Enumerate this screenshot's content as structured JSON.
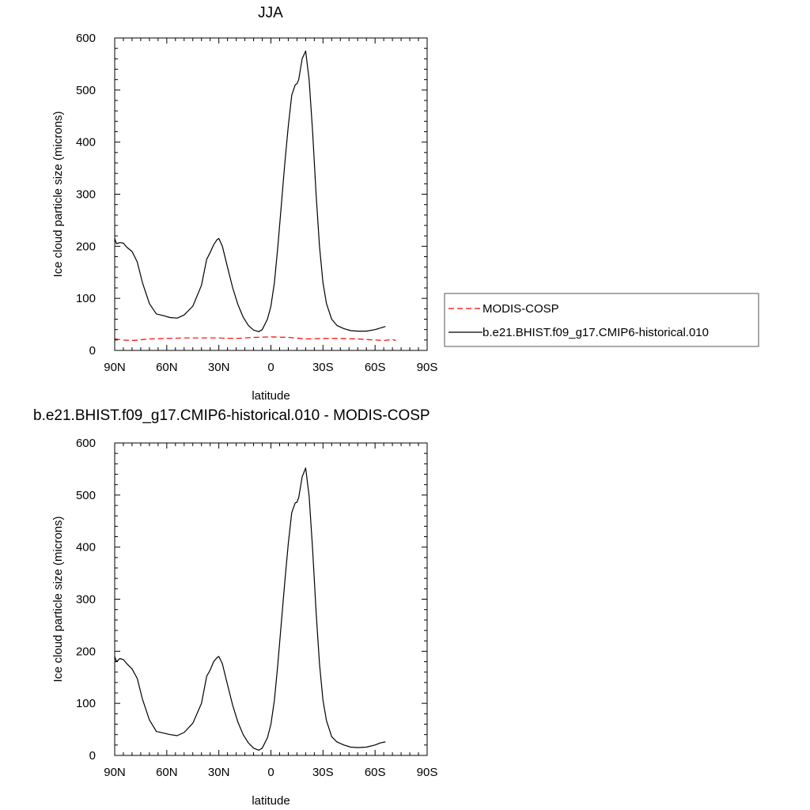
{
  "chart_data": [
    {
      "type": "line",
      "title": "JJA",
      "xlabel": "latitude",
      "ylabel": "Ice cloud particle size (microns)",
      "xlim": [
        90,
        -90
      ],
      "ylim": [
        0,
        600
      ],
      "xticks": [
        90,
        60,
        30,
        0,
        -30,
        -60,
        -90
      ],
      "xtick_labels": [
        "90N",
        "60N",
        "30N",
        "0",
        "30S",
        "60S",
        "90S"
      ],
      "yticks": [
        0,
        100,
        200,
        300,
        400,
        500,
        600
      ],
      "ytick_labels": [
        "0",
        "100",
        "200",
        "300",
        "400",
        "500",
        "600"
      ],
      "grid": false,
      "legend_position": "right",
      "series": [
        {
          "name": "MODIS-COSP",
          "color": "#ff0000",
          "dash": "dashed",
          "x": [
            90,
            85,
            80,
            70,
            60,
            50,
            40,
            30,
            20,
            10,
            0,
            -10,
            -20,
            -30,
            -40,
            -50,
            -55,
            -60,
            -65,
            -70,
            -72
          ],
          "y": [
            22,
            20,
            19,
            22,
            23,
            24,
            24,
            24,
            23,
            25,
            26,
            25,
            22,
            23,
            23,
            22,
            21,
            20,
            19,
            21,
            19
          ]
        },
        {
          "name": "b.e21.BHIST.f09_g17.CMIP6-historical.010",
          "color": "#000000",
          "dash": "solid",
          "x": [
            90,
            89,
            87,
            85,
            83,
            80,
            77,
            74,
            70,
            66,
            62,
            58,
            54,
            50,
            45,
            40,
            37,
            35,
            33,
            31,
            30,
            28,
            25,
            22,
            19,
            16,
            13,
            10,
            7,
            5,
            2,
            0,
            -2,
            -4,
            -6,
            -8,
            -10,
            -12,
            -14,
            -15,
            -16,
            -18,
            -20,
            -22,
            -24,
            -26,
            -28,
            -30,
            -32,
            -35,
            -38,
            -42,
            -46,
            -50,
            -55,
            -60,
            -63,
            -66
          ],
          "y": [
            215,
            205,
            207,
            206,
            198,
            190,
            170,
            130,
            90,
            70,
            67,
            63,
            62,
            68,
            85,
            125,
            175,
            188,
            203,
            213,
            215,
            200,
            160,
            120,
            88,
            64,
            48,
            39,
            36,
            40,
            60,
            85,
            130,
            200,
            280,
            360,
            430,
            490,
            510,
            512,
            520,
            560,
            575,
            520,
            420,
            300,
            200,
            130,
            90,
            60,
            48,
            42,
            38,
            37,
            37,
            40,
            43,
            46
          ]
        }
      ]
    },
    {
      "type": "line",
      "title": "b.e21.BHIST.f09_g17.CMIP6-historical.010 - MODIS-COSP",
      "xlabel": "latitude",
      "ylabel": "Ice cloud particle size (microns)",
      "xlim": [
        90,
        -90
      ],
      "ylim": [
        0,
        600
      ],
      "xticks": [
        90,
        60,
        30,
        0,
        -30,
        -60,
        -90
      ],
      "xtick_labels": [
        "90N",
        "60N",
        "30N",
        "0",
        "30S",
        "60S",
        "90S"
      ],
      "yticks": [
        0,
        100,
        200,
        300,
        400,
        500,
        600
      ],
      "ytick_labels": [
        "0",
        "100",
        "200",
        "300",
        "400",
        "500",
        "600"
      ],
      "grid": false,
      "series": [
        {
          "color": "#000000",
          "dash": "solid",
          "x": [
            90,
            89,
            87,
            85,
            83,
            80,
            77,
            74,
            70,
            66,
            62,
            58,
            54,
            50,
            45,
            40,
            37,
            35,
            33,
            31,
            30,
            28,
            25,
            22,
            19,
            16,
            13,
            10,
            7,
            5,
            2,
            0,
            -2,
            -4,
            -6,
            -8,
            -10,
            -12,
            -14,
            -15,
            -16,
            -18,
            -20,
            -22,
            -24,
            -26,
            -28,
            -30,
            -32,
            -35,
            -38,
            -42,
            -46,
            -50,
            -55,
            -60,
            -63,
            -66
          ],
          "y": [
            190,
            180,
            186,
            184,
            176,
            166,
            148,
            108,
            68,
            46,
            43,
            40,
            38,
            44,
            62,
            100,
            152,
            164,
            180,
            188,
            190,
            176,
            136,
            96,
            64,
            40,
            24,
            14,
            10,
            14,
            34,
            60,
            106,
            176,
            256,
            334,
            406,
            466,
            485,
            486,
            495,
            535,
            552,
            498,
            396,
            276,
            176,
            106,
            67,
            36,
            26,
            20,
            16,
            15,
            16,
            20,
            24,
            26
          ]
        }
      ]
    }
  ]
}
